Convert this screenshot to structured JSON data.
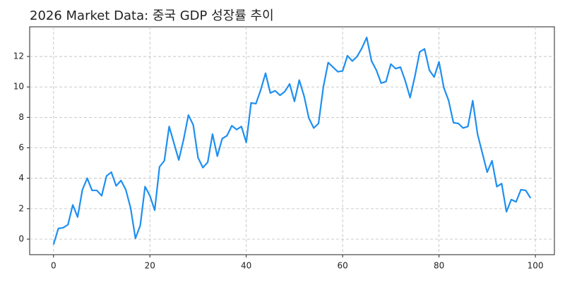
{
  "chart_data": {
    "type": "line",
    "title": "2026 Market Data: 중국 GDP 성장률 추이",
    "x": [
      0,
      1,
      2,
      3,
      4,
      5,
      6,
      7,
      8,
      9,
      10,
      11,
      12,
      13,
      14,
      15,
      16,
      17,
      18,
      19,
      20,
      21,
      22,
      23,
      24,
      25,
      26,
      27,
      28,
      29,
      30,
      31,
      32,
      33,
      34,
      35,
      36,
      37,
      38,
      39,
      40,
      41,
      42,
      43,
      44,
      45,
      46,
      47,
      48,
      49,
      50,
      51,
      52,
      53,
      54,
      55,
      56,
      57,
      58,
      59,
      60,
      61,
      62,
      63,
      64,
      65,
      66,
      67,
      68,
      69,
      70,
      71,
      72,
      73,
      74,
      75,
      76,
      77,
      78,
      79,
      80,
      81,
      82,
      83,
      84,
      85,
      86,
      87,
      88,
      89,
      90,
      91,
      92,
      93,
      94,
      95,
      96,
      97,
      98,
      99
    ],
    "series": [
      {
        "color": "#1e8ff0",
        "values": [
          -0.35,
          0.7,
          0.75,
          0.95,
          2.25,
          1.45,
          3.25,
          4.0,
          3.2,
          3.2,
          2.85,
          4.15,
          4.4,
          3.5,
          3.85,
          3.25,
          2.05,
          0.05,
          0.9,
          3.45,
          2.85,
          1.9,
          4.75,
          5.15,
          7.4,
          6.3,
          5.2,
          6.55,
          8.15,
          7.5,
          5.35,
          4.7,
          5.05,
          6.9,
          5.45,
          6.6,
          6.8,
          7.45,
          7.2,
          7.4,
          6.35,
          8.95,
          8.9,
          9.8,
          10.9,
          9.6,
          9.75,
          9.45,
          9.7,
          10.2,
          9.05,
          10.45,
          9.4,
          7.95,
          7.3,
          7.6,
          10.0,
          11.6,
          11.3,
          11.0,
          11.05,
          12.05,
          11.7,
          12.0,
          12.55,
          13.25,
          11.7,
          11.1,
          10.25,
          10.35,
          11.5,
          11.2,
          11.3,
          10.4,
          9.3,
          10.7,
          12.3,
          12.5,
          11.1,
          10.65,
          11.65,
          9.95,
          9.1,
          7.65,
          7.6,
          7.3,
          7.4,
          9.1,
          6.9,
          5.65,
          4.4,
          5.15,
          3.45,
          3.65,
          1.8,
          2.6,
          2.45,
          3.25,
          3.2,
          2.7
        ]
      }
    ],
    "xlim": [
      -4.95,
      103.95
    ],
    "xticks": [
      0,
      20,
      40,
      60,
      80,
      100
    ],
    "ylim": [
      -1.02,
      13.95
    ],
    "yticks": [
      0,
      2,
      4,
      6,
      8,
      10,
      12
    ],
    "grid": true
  }
}
